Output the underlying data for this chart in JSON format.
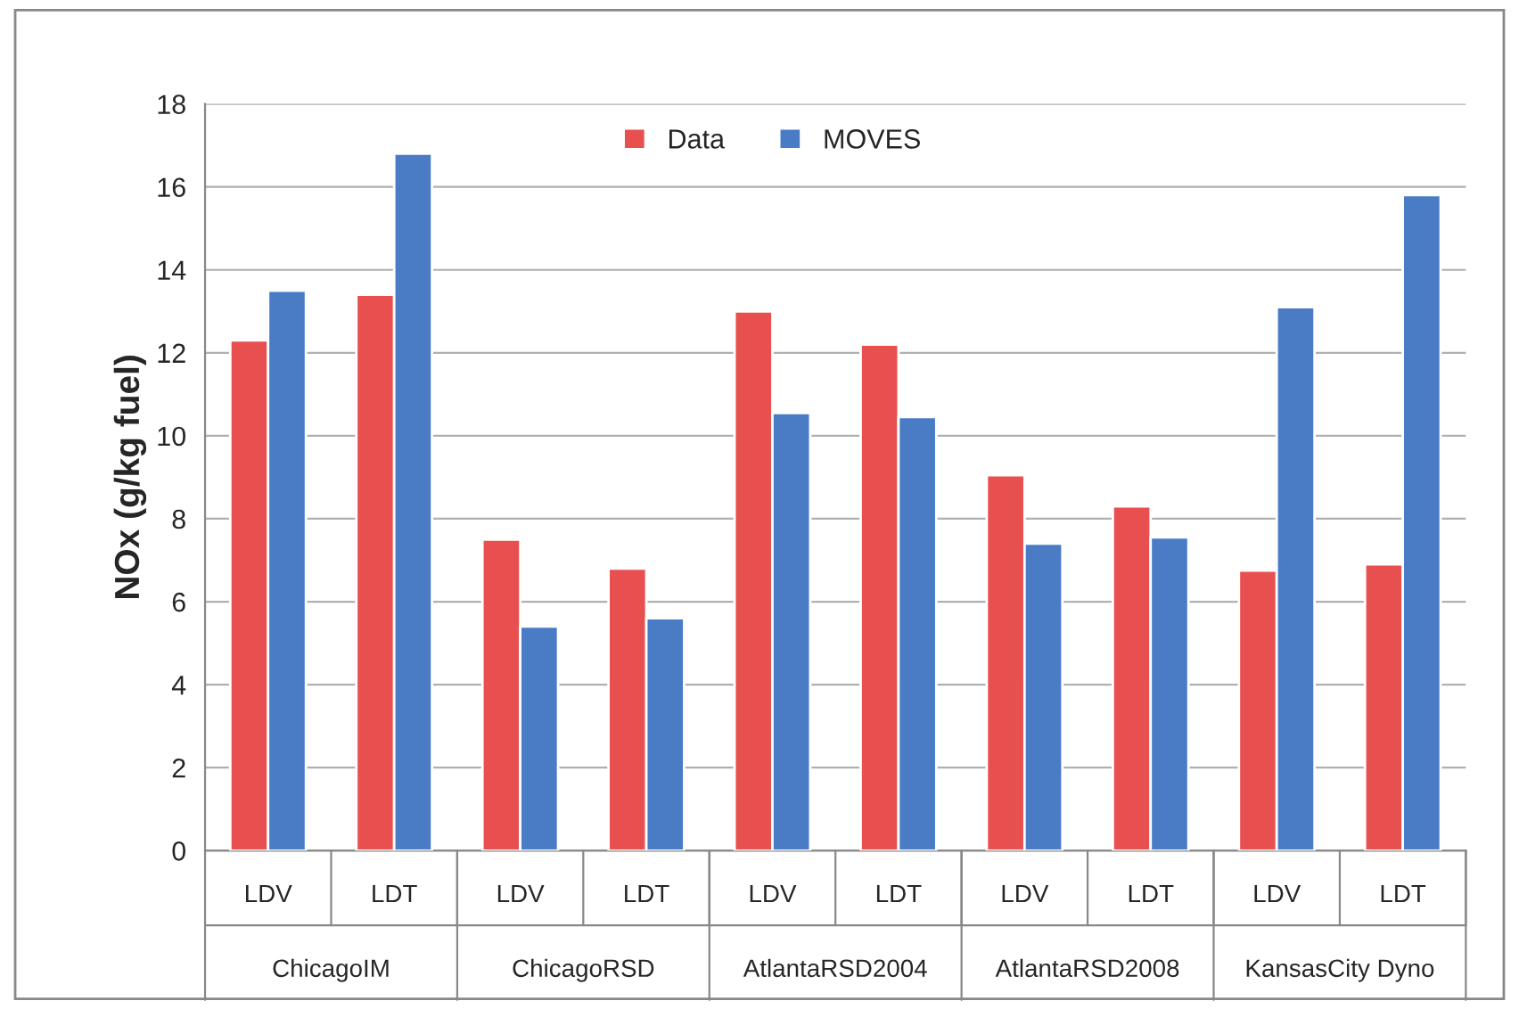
{
  "chart_data": {
    "type": "bar",
    "ylabel": "NOx (g/kg fuel)",
    "categories": [
      "LDV",
      "LDT",
      "LDV",
      "LDT",
      "LDV",
      "LDT",
      "LDV",
      "LDT",
      "LDV",
      "LDT"
    ],
    "series": [
      {
        "name": "Data",
        "color": "#e8504f",
        "values": [
          12.3,
          13.4,
          7.5,
          6.8,
          13.0,
          12.2,
          9.05,
          8.3,
          6.75,
          6.9
        ]
      },
      {
        "name": "MOVES",
        "color": "#4a7cc6",
        "values": [
          13.5,
          16.8,
          5.4,
          5.6,
          10.55,
          10.45,
          7.4,
          7.55,
          13.1,
          15.8
        ]
      }
    ],
    "annotations": [
      "ChicagoIM",
      "ChicagoRSD",
      "AtlantaRSD2004",
      "AtlantaRSD2008",
      "KansasCity Dyno"
    ],
    "ylim": [
      0,
      18
    ],
    "yticks": [
      0,
      2,
      4,
      6,
      8,
      10,
      12,
      14,
      16,
      18
    ],
    "grid": "y",
    "legend": "top"
  }
}
